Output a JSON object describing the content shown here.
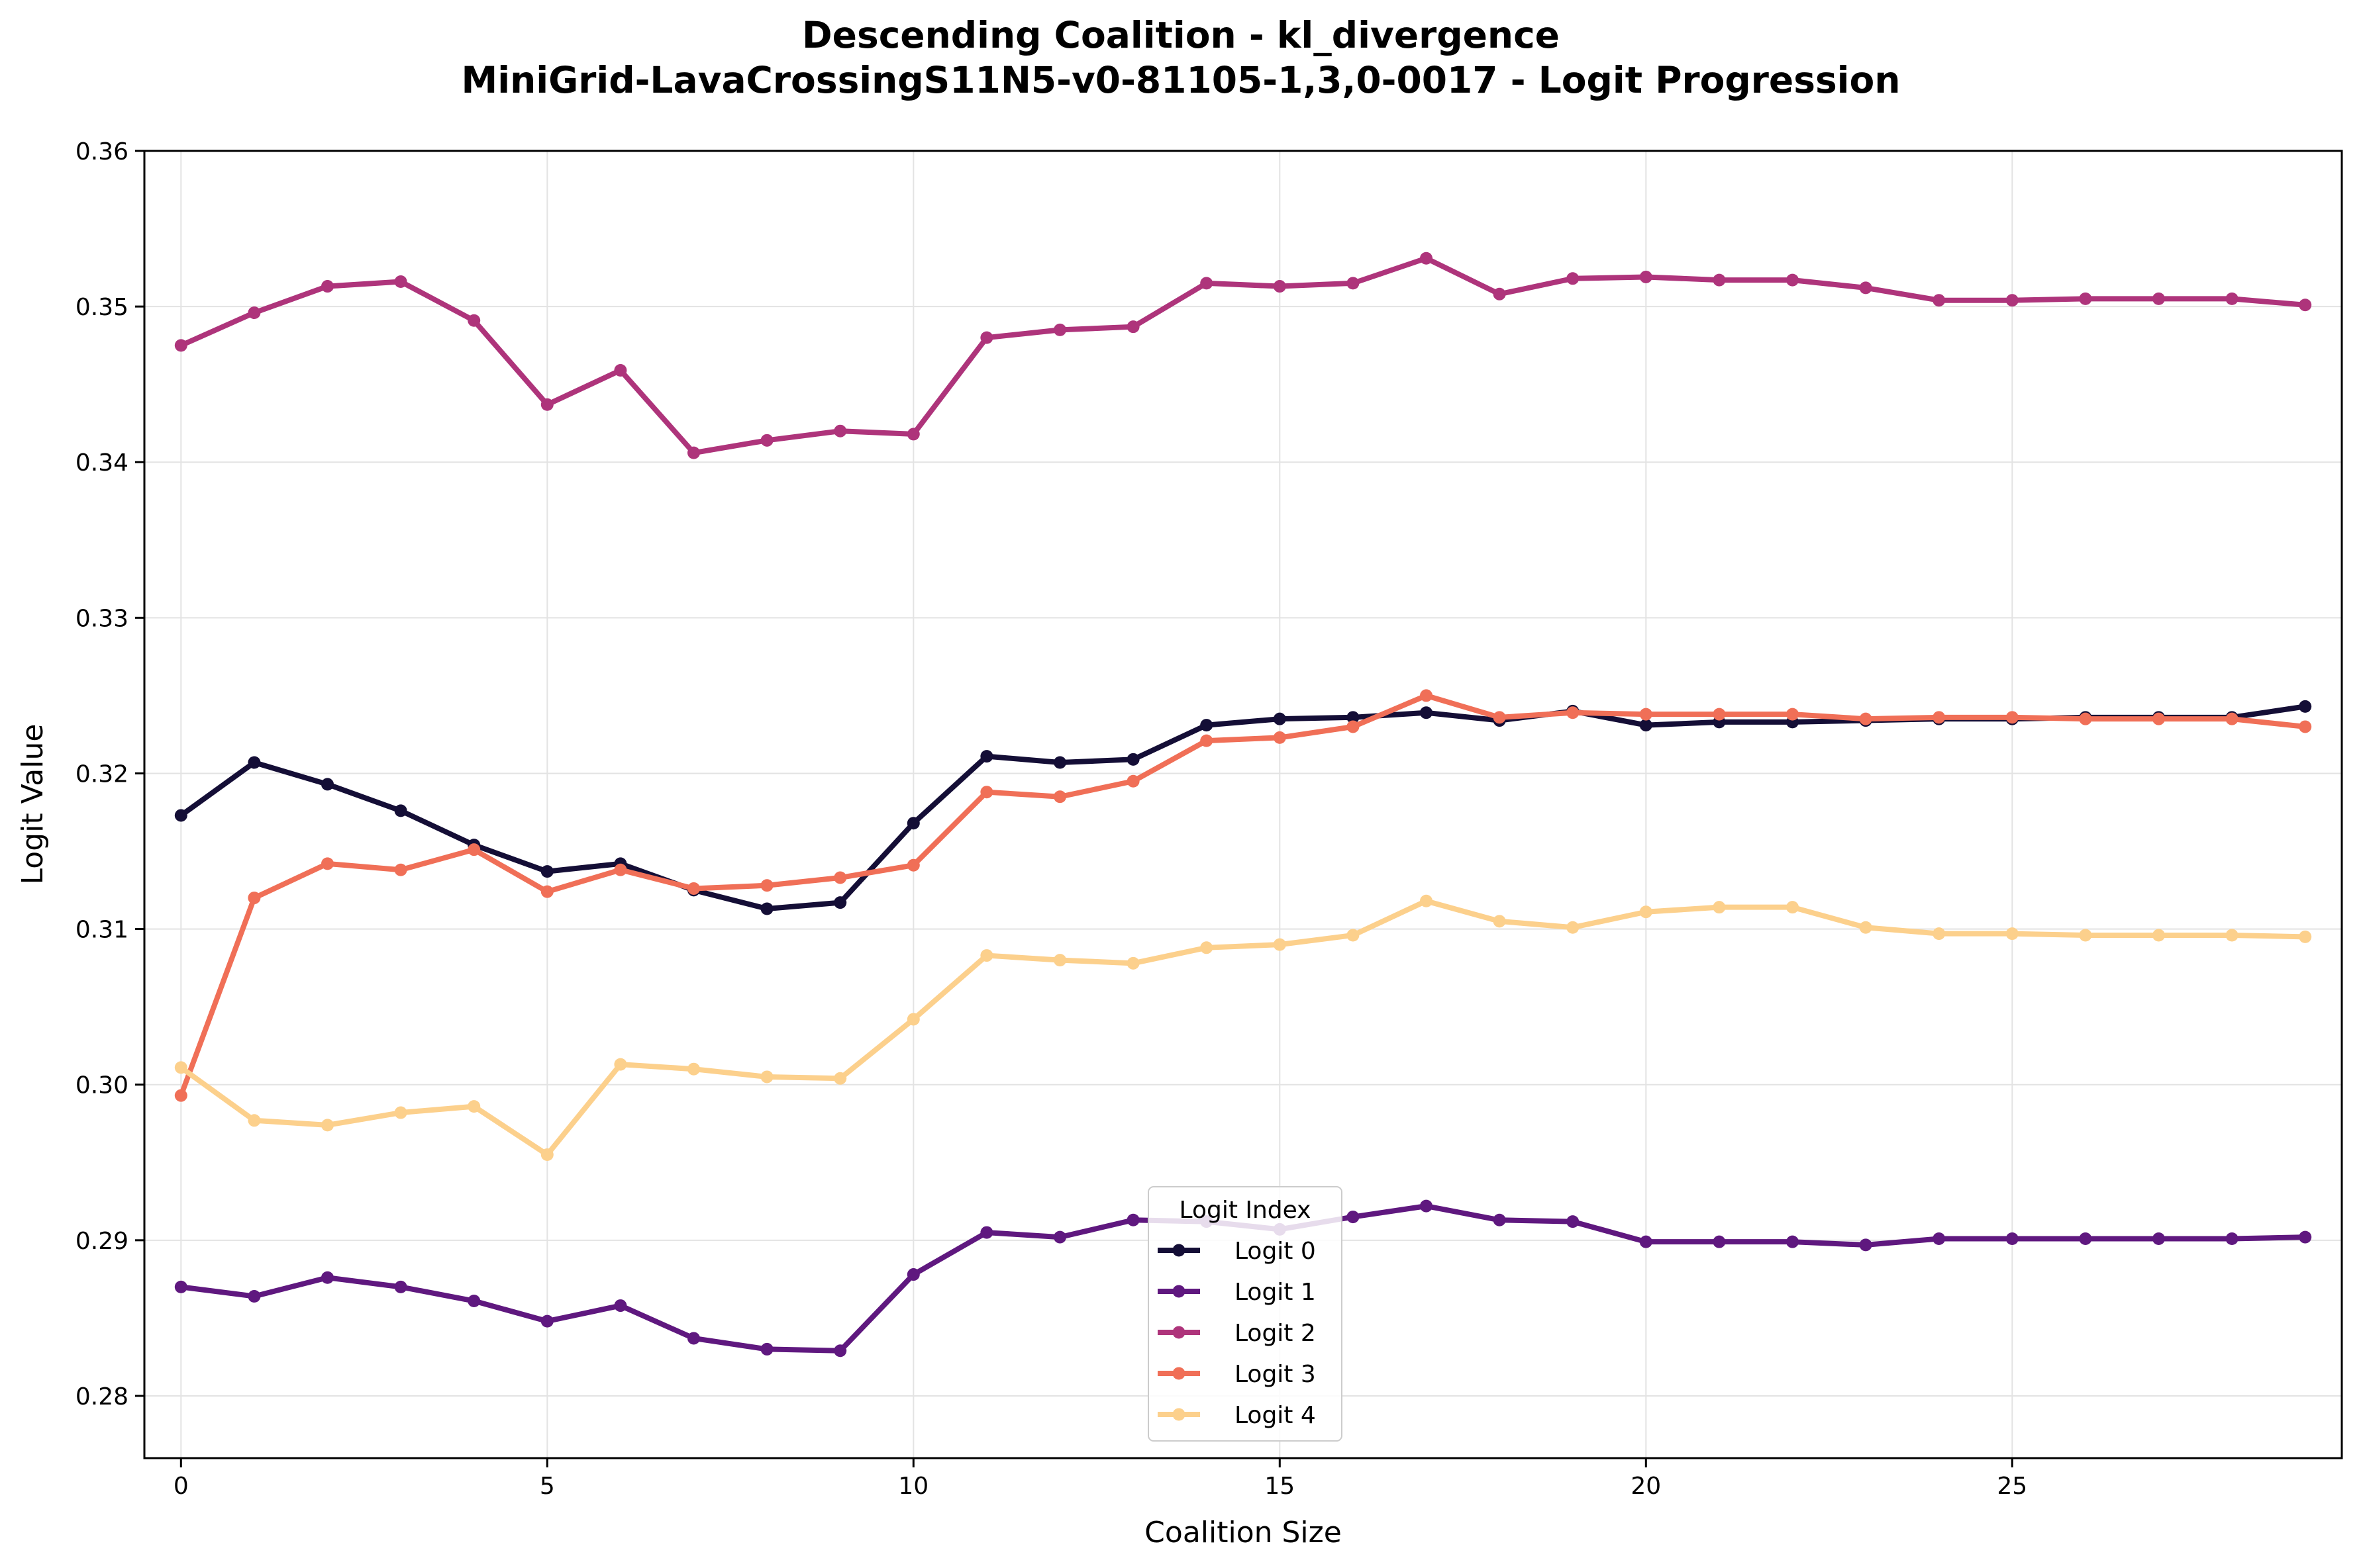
{
  "chart_data": {
    "type": "line",
    "title_line1": "Descending Coalition - kl_divergence",
    "title_line2": "MiniGrid-LavaCrossingS11N5-v0-81105-1,3,0-0017 - Logit Progression",
    "xlabel": "Coalition Size",
    "ylabel": "Logit Value",
    "xlim": [
      -0.5,
      29.5
    ],
    "ylim": [
      0.276,
      0.36
    ],
    "xticks": [
      0,
      5,
      10,
      15,
      20,
      25
    ],
    "xtick_labels": [
      "0",
      "5",
      "10",
      "15",
      "20",
      "25"
    ],
    "yticks": [
      0.28,
      0.29,
      0.3,
      0.31,
      0.32,
      0.33,
      0.34,
      0.35,
      0.36
    ],
    "ytick_labels": [
      "0.28",
      "0.29",
      "0.30",
      "0.31",
      "0.32",
      "0.33",
      "0.34",
      "0.35",
      "0.36"
    ],
    "grid": true,
    "legend_title": "Logit Index",
    "legend_position": "lower-center",
    "x": [
      0,
      1,
      2,
      3,
      4,
      5,
      6,
      7,
      8,
      9,
      10,
      11,
      12,
      13,
      14,
      15,
      16,
      17,
      18,
      19,
      20,
      21,
      22,
      23,
      24,
      25,
      26,
      27,
      28,
      29
    ],
    "series": [
      {
        "name": "Logit 0",
        "color": "#140e36",
        "values": [
          0.3173,
          0.3207,
          0.3193,
          0.3176,
          0.3154,
          0.3137,
          0.3142,
          0.3125,
          0.3113,
          0.3117,
          0.3168,
          0.3211,
          0.3207,
          0.3209,
          0.3231,
          0.3235,
          0.3236,
          0.3239,
          0.3234,
          0.324,
          0.3231,
          0.3233,
          0.3233,
          0.3234,
          0.3235,
          0.3235,
          0.3236,
          0.3236,
          0.3236,
          0.3243
        ]
      },
      {
        "name": "Logit 1",
        "color": "#5f187f",
        "values": [
          0.287,
          0.2864,
          0.2876,
          0.287,
          0.2861,
          0.2848,
          0.2858,
          0.2837,
          0.283,
          0.2829,
          0.2878,
          0.2905,
          0.2902,
          0.2913,
          0.2912,
          0.2907,
          0.2915,
          0.2922,
          0.2913,
          0.2912,
          0.2899,
          0.2899,
          0.2899,
          0.2897,
          0.2901,
          0.2901,
          0.2901,
          0.2901,
          0.2901,
          0.2902
        ]
      },
      {
        "name": "Logit 2",
        "color": "#ae347b",
        "values": [
          0.3475,
          0.3496,
          0.3513,
          0.3516,
          0.3491,
          0.3437,
          0.3459,
          0.3406,
          0.3414,
          0.342,
          0.3418,
          0.348,
          0.3485,
          0.3487,
          0.3515,
          0.3513,
          0.3515,
          0.3531,
          0.3508,
          0.3518,
          0.3519,
          0.3517,
          0.3517,
          0.3512,
          0.3504,
          0.3504,
          0.3505,
          0.3505,
          0.3505,
          0.3501
        ]
      },
      {
        "name": "Logit 3",
        "color": "#f06f57",
        "values": [
          0.2993,
          0.312,
          0.3142,
          0.3138,
          0.3151,
          0.3124,
          0.3138,
          0.3126,
          0.3128,
          0.3133,
          0.3141,
          0.3188,
          0.3185,
          0.3195,
          0.3221,
          0.3223,
          0.323,
          0.325,
          0.3236,
          0.3239,
          0.3238,
          0.3238,
          0.3238,
          0.3235,
          0.3236,
          0.3236,
          0.3235,
          0.3235,
          0.3235,
          0.323
        ]
      },
      {
        "name": "Logit 4",
        "color": "#fcd08c",
        "values": [
          0.3011,
          0.2977,
          0.2974,
          0.2982,
          0.2986,
          0.2955,
          0.3013,
          0.301,
          0.3005,
          0.3004,
          0.3042,
          0.3083,
          0.308,
          0.3078,
          0.3088,
          0.309,
          0.3096,
          0.3118,
          0.3105,
          0.3101,
          0.3111,
          0.3114,
          0.3114,
          0.3101,
          0.3097,
          0.3097,
          0.3096,
          0.3096,
          0.3096,
          0.3095
        ]
      }
    ]
  }
}
